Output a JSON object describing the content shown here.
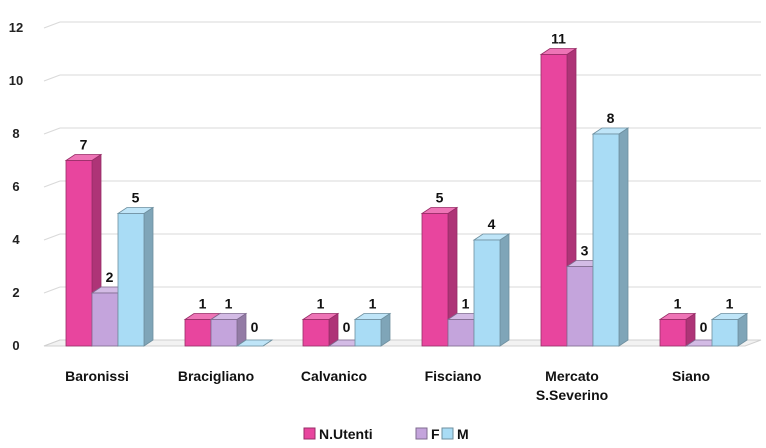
{
  "chart_data": {
    "type": "bar",
    "title": "",
    "xlabel": "",
    "ylabel": "",
    "ylim": [
      0,
      12
    ],
    "yticks": [
      0,
      2,
      4,
      6,
      8,
      10,
      12
    ],
    "grid": true,
    "legend_position": "bottom",
    "categories": [
      [
        "Baronissi"
      ],
      [
        "Bracigliano"
      ],
      [
        "Calvanico"
      ],
      [
        "Fisciano"
      ],
      [
        "Mercato",
        "S.Severino"
      ],
      [
        "Siano"
      ]
    ],
    "series": [
      {
        "name": "N.Utenti",
        "color": "#e8459e",
        "values": [
          7,
          1,
          1,
          5,
          11,
          1
        ]
      },
      {
        "name": "F",
        "color": "#c4a4dc",
        "values": [
          2,
          1,
          0,
          1,
          3,
          0
        ]
      },
      {
        "name": "M",
        "color": "#a9dcf5",
        "values": [
          5,
          0,
          1,
          4,
          8,
          1
        ]
      }
    ]
  }
}
